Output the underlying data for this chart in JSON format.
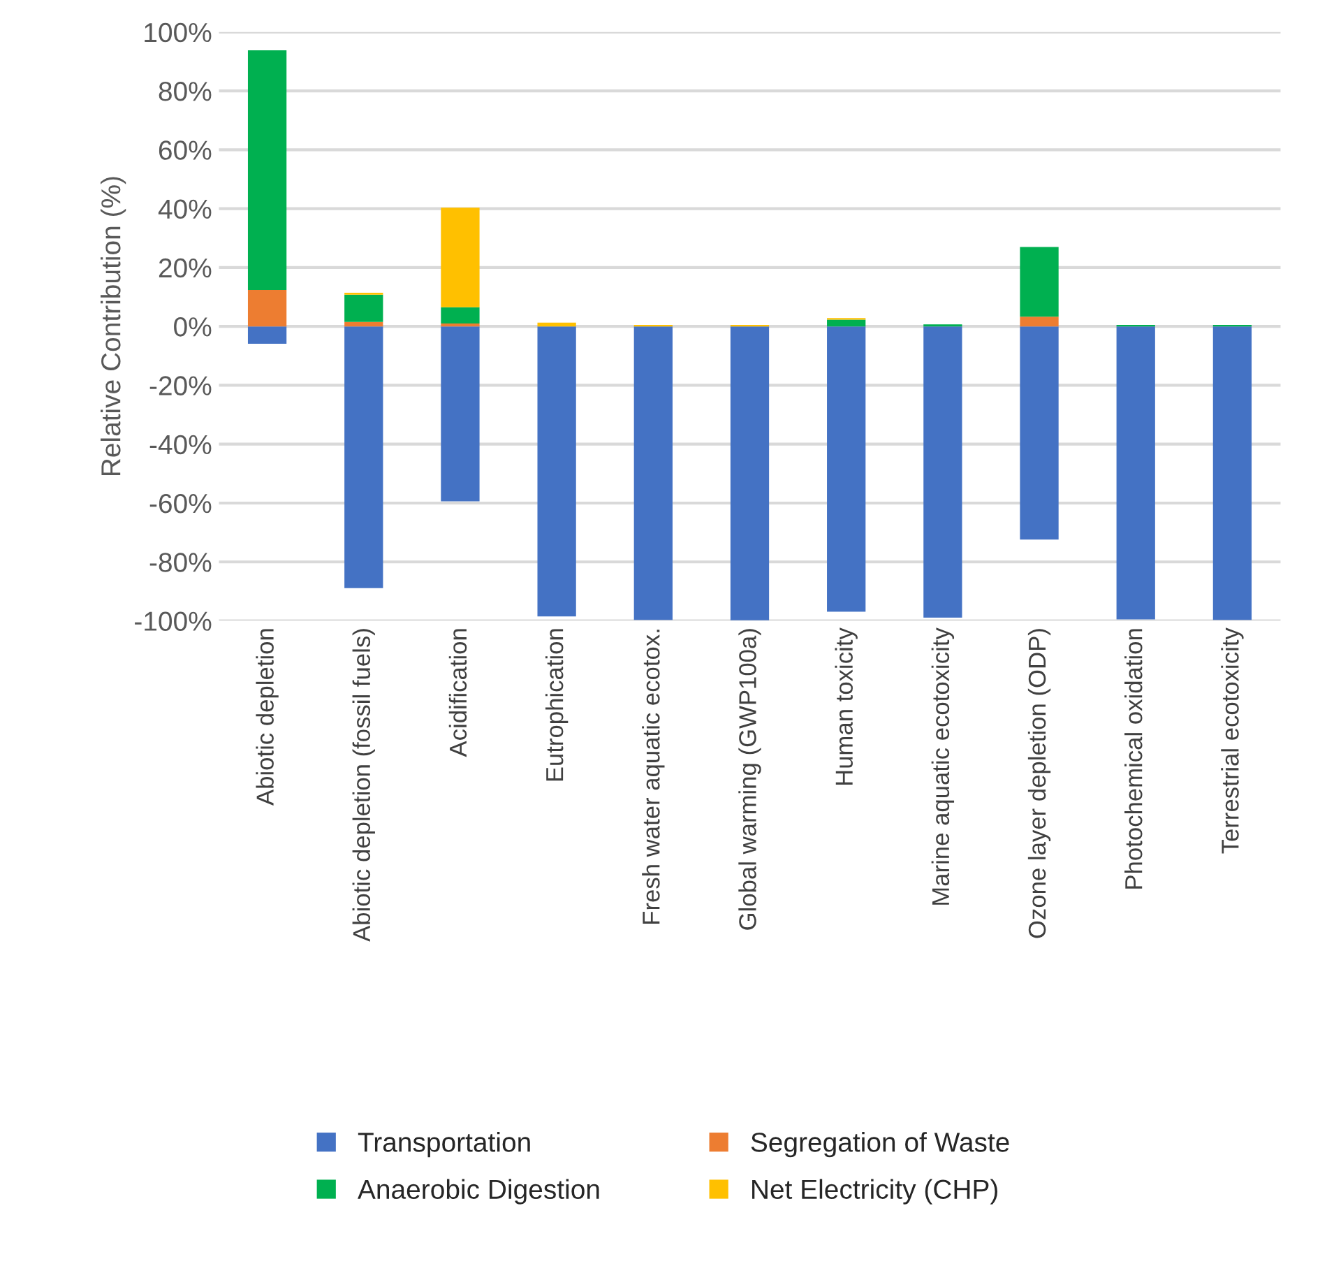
{
  "chart_data": {
    "type": "bar",
    "stacked": true,
    "ylabel": "Relative Contribution (%)",
    "categories": [
      "Abiotic depletion",
      "Abiotic depletion (fossil fuels)",
      "Acidification",
      "Eutrophication",
      "Fresh water aquatic ecotox.",
      "Global warming (GWP100a)",
      "Human toxicity",
      "Marine aquatic ecotoxicity",
      "Ozone layer depletion (ODP)",
      "Photochemical oxidation",
      "Terrestrial ecotoxicity"
    ],
    "series": [
      {
        "name": "Transportation",
        "color": "#4472c4",
        "values": [
          -5.9,
          -88.9,
          -59.4,
          -98.5,
          -99.7,
          -99.8,
          -96.9,
          -98.9,
          -72.4,
          -99.5,
          -99.7
        ]
      },
      {
        "name": "Segregation of Waste",
        "color": "#ed7d31",
        "values": [
          12.4,
          1.5,
          1.0,
          null,
          null,
          null,
          null,
          null,
          3.3,
          null,
          null
        ]
      },
      {
        "name": "Anaerobic Digestion",
        "color": "#00b050",
        "values": [
          81.4,
          9.3,
          5.5,
          null,
          null,
          null,
          2.3,
          0.7,
          23.7,
          0.5,
          0.5
        ]
      },
      {
        "name": "Net Electricity (CHP)",
        "color": "#ffc000",
        "values": [
          null,
          0.6,
          33.8,
          1.3,
          0.5,
          0.5,
          0.5,
          null,
          null,
          null,
          null
        ]
      }
    ],
    "ylim": [
      -100,
      100
    ],
    "yticks": [
      {
        "value": -100,
        "label": "-100%"
      },
      {
        "value": -80,
        "label": "-80%"
      },
      {
        "value": -60,
        "label": "-60%"
      },
      {
        "value": -40,
        "label": "-40%"
      },
      {
        "value": -20,
        "label": "-20%"
      },
      {
        "value": 0,
        "label": "0%"
      },
      {
        "value": 20,
        "label": "20%"
      },
      {
        "value": 40,
        "label": "40%"
      },
      {
        "value": 60,
        "label": "60%"
      },
      {
        "value": 80,
        "label": "80%"
      },
      {
        "value": 100,
        "label": "100%"
      }
    ],
    "grid": "y",
    "legend": "bottom"
  }
}
